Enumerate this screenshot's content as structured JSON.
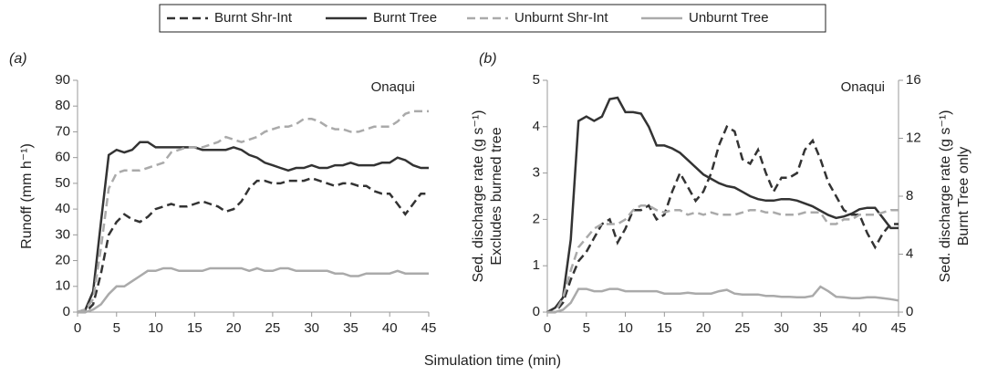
{
  "chart_data": [
    {
      "type": "line",
      "panel_label": "(a)",
      "annotation": "Onaqui",
      "ylabel": [
        "Runoff (mm h⁻¹)"
      ],
      "xlabel": "Simulation time (min)",
      "x": [
        0,
        1,
        2,
        3,
        4,
        5,
        6,
        7,
        8,
        9,
        10,
        11,
        12,
        13,
        14,
        15,
        16,
        17,
        18,
        19,
        20,
        21,
        22,
        23,
        24,
        25,
        26,
        27,
        28,
        29,
        30,
        31,
        32,
        33,
        34,
        35,
        36,
        37,
        38,
        39,
        40,
        41,
        42,
        43,
        44,
        45
      ],
      "xlim": [
        0,
        45
      ],
      "xticks": [
        0,
        5,
        10,
        15,
        20,
        25,
        30,
        35,
        40,
        45
      ],
      "ylim": [
        0,
        90
      ],
      "yticks": [
        0,
        10,
        20,
        30,
        40,
        50,
        60,
        70,
        80,
        90
      ],
      "grid": false,
      "series": [
        {
          "name": "Burnt Shr-Int",
          "color": "#333333",
          "dashed": true,
          "values": [
            0,
            0,
            3,
            15,
            30,
            35,
            38,
            36,
            35,
            37,
            40,
            41,
            42,
            41,
            41,
            42,
            43,
            42,
            41,
            39,
            40,
            43,
            48,
            51,
            51,
            50,
            50,
            51,
            51,
            51,
            52,
            51,
            50,
            49,
            50,
            50,
            49,
            49,
            47,
            46,
            46,
            42,
            38,
            42,
            46,
            46
          ]
        },
        {
          "name": "Burnt Tree",
          "color": "#333333",
          "dashed": false,
          "values": [
            0,
            1,
            8,
            35,
            61,
            63,
            62,
            63,
            66,
            66,
            64,
            64,
            64,
            64,
            64,
            64,
            63,
            63,
            63,
            63,
            64,
            63,
            61,
            60,
            58,
            57,
            56,
            55,
            56,
            56,
            57,
            56,
            56,
            57,
            57,
            58,
            57,
            57,
            57,
            58,
            58,
            60,
            59,
            57,
            56,
            56
          ]
        },
        {
          "name": "Unburnt Shr-Int",
          "color": "#aaaaaa",
          "dashed": true,
          "values": [
            0,
            1,
            5,
            25,
            48,
            54,
            55,
            55,
            55,
            56,
            57,
            58,
            62,
            63,
            64,
            64,
            64,
            65,
            66,
            68,
            67,
            66,
            67,
            68,
            70,
            71,
            72,
            72,
            73,
            75,
            75,
            74,
            72,
            71,
            71,
            70,
            70,
            71,
            72,
            72,
            72,
            74,
            77,
            78,
            78,
            78
          ]
        },
        {
          "name": "Unburnt Tree",
          "color": "#aaaaaa",
          "dashed": false,
          "values": [
            0,
            0,
            1,
            3,
            7,
            10,
            10,
            12,
            14,
            16,
            16,
            17,
            17,
            16,
            16,
            16,
            16,
            17,
            17,
            17,
            17,
            17,
            16,
            17,
            16,
            16,
            17,
            17,
            16,
            16,
            16,
            16,
            16,
            15,
            15,
            14,
            14,
            15,
            15,
            15,
            15,
            16,
            15,
            15,
            15,
            15
          ]
        }
      ]
    },
    {
      "type": "line",
      "panel_label": "(b)",
      "annotation": "Onaqui",
      "ylabel": [
        "Sed. discharge rate (g s⁻¹)",
        "Excludes burned tree"
      ],
      "y2label": [
        "Sed. discharge rate (g s⁻¹)",
        "Burnt Tree only"
      ],
      "x": [
        0,
        1,
        2,
        3,
        4,
        5,
        6,
        7,
        8,
        9,
        10,
        11,
        12,
        13,
        14,
        15,
        16,
        17,
        18,
        19,
        20,
        21,
        22,
        23,
        24,
        25,
        26,
        27,
        28,
        29,
        30,
        31,
        32,
        33,
        34,
        35,
        36,
        37,
        38,
        39,
        40,
        41,
        42,
        43,
        44,
        45
      ],
      "xlim": [
        0,
        45
      ],
      "xticks": [
        0,
        5,
        10,
        15,
        20,
        25,
        30,
        35,
        40,
        45
      ],
      "ylim": [
        0,
        5
      ],
      "yticks": [
        0,
        1,
        2,
        3,
        4,
        5
      ],
      "y2lim": [
        0,
        16
      ],
      "y2ticks": [
        0,
        4,
        8,
        12,
        16
      ],
      "grid": false,
      "series": [
        {
          "name": "Burnt Shr-Int",
          "color": "#333333",
          "dashed": true,
          "values": [
            0,
            0,
            0.2,
            0.7,
            1.1,
            1.3,
            1.6,
            1.9,
            2.0,
            1.5,
            1.8,
            2.2,
            2.2,
            2.3,
            2.0,
            2.1,
            2.6,
            3.0,
            2.7,
            2.4,
            2.6,
            3.0,
            3.6,
            4.0,
            3.9,
            3.3,
            3.2,
            3.5,
            3.0,
            2.6,
            2.9,
            2.9,
            3.0,
            3.5,
            3.7,
            3.3,
            2.8,
            2.5,
            2.2,
            2.1,
            2.1,
            1.7,
            1.4,
            1.7,
            1.9,
            1.9
          ]
        },
        {
          "name": "Burnt Tree",
          "color": "#333333",
          "dashed": false,
          "axis": "y2",
          "values": [
            0,
            0.3,
            1,
            5,
            13.2,
            13.5,
            13.2,
            13.5,
            14.7,
            14.8,
            13.8,
            13.8,
            13.7,
            12.8,
            11.5,
            11.5,
            11.3,
            11,
            10.5,
            10,
            9.5,
            9.2,
            8.9,
            8.7,
            8.6,
            8.3,
            8,
            7.8,
            7.7,
            7.7,
            7.8,
            7.8,
            7.7,
            7.5,
            7.3,
            7.0,
            6.7,
            6.5,
            6.6,
            6.8,
            7.1,
            7.2,
            7.2,
            6.5,
            5.8,
            5.8
          ]
        },
        {
          "name": "Unburnt Shr-Int",
          "color": "#aaaaaa",
          "dashed": true,
          "values": [
            0,
            0,
            0.3,
            0.9,
            1.4,
            1.6,
            1.8,
            1.9,
            1.9,
            1.9,
            2.0,
            2.2,
            2.3,
            2.3,
            2.2,
            2.15,
            2.2,
            2.2,
            2.1,
            2.15,
            2.1,
            2.15,
            2.1,
            2.1,
            2.1,
            2.15,
            2.2,
            2.2,
            2.15,
            2.15,
            2.1,
            2.1,
            2.1,
            2.15,
            2.15,
            2.15,
            1.9,
            1.9,
            2.0,
            2.0,
            2.1,
            2.1,
            2.1,
            2.15,
            2.2,
            2.2
          ]
        },
        {
          "name": "Unburnt Tree",
          "color": "#aaaaaa",
          "dashed": false,
          "values": [
            0,
            0,
            0.05,
            0.2,
            0.5,
            0.5,
            0.45,
            0.45,
            0.5,
            0.5,
            0.45,
            0.45,
            0.45,
            0.45,
            0.45,
            0.4,
            0.4,
            0.4,
            0.42,
            0.4,
            0.4,
            0.4,
            0.45,
            0.48,
            0.4,
            0.38,
            0.38,
            0.38,
            0.35,
            0.35,
            0.33,
            0.33,
            0.32,
            0.32,
            0.35,
            0.55,
            0.45,
            0.33,
            0.32,
            0.3,
            0.3,
            0.32,
            0.32,
            0.3,
            0.28,
            0.25
          ]
        }
      ]
    }
  ]
}
